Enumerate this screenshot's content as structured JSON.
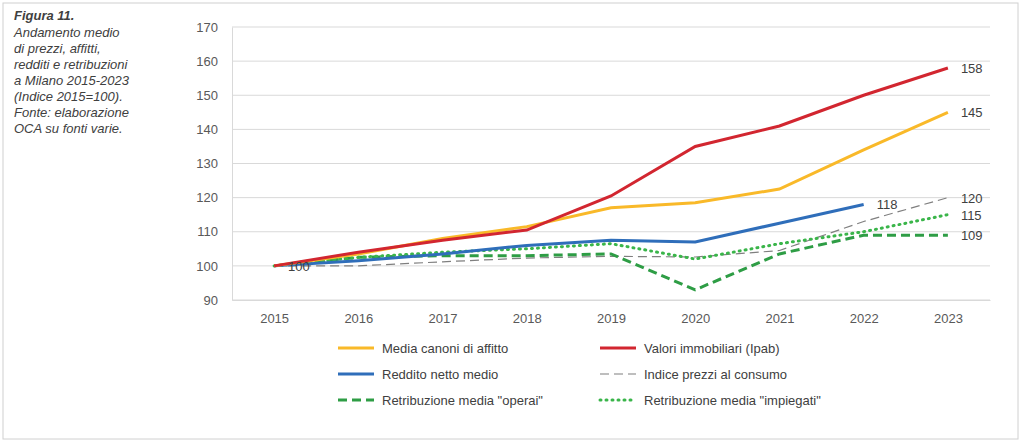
{
  "chart_data": {
    "type": "line",
    "title": "Figura 11.",
    "subtitle": [
      "Andamento medio",
      "di prezzi, affitti,",
      "redditi e retribuzioni",
      "a Milano 2015-2023",
      "(Indice 2015=100).",
      "Fonte: elaborazione",
      "OCA su fonti varie."
    ],
    "categories": [
      "2015",
      "2016",
      "2017",
      "2018",
      "2019",
      "2020",
      "2021",
      "2022",
      "2023"
    ],
    "ylim": [
      90,
      170
    ],
    "yticks": [
      90,
      100,
      110,
      120,
      130,
      140,
      150,
      160,
      170
    ],
    "grid": true,
    "legend": "bottom",
    "series": [
      {
        "name": "Media canoni di affitto",
        "color": "#f9b929",
        "line_style": "solid",
        "values": [
          100,
          103.5,
          108,
          111.5,
          117,
          118.5,
          122.5,
          134,
          145
        ]
      },
      {
        "name": "Valori immobiliari (Ipab)",
        "color": "#d22630",
        "line_style": "solid",
        "values": [
          100,
          104,
          107.5,
          110.5,
          120.5,
          135,
          141,
          150,
          158
        ]
      },
      {
        "name": "Reddito netto medio",
        "color": "#2f6eba",
        "line_style": "solid",
        "values": [
          100,
          101.5,
          103.5,
          106,
          107.5,
          107,
          112.5,
          118,
          null
        ]
      },
      {
        "name": "Indice prezzi al consumo",
        "color": "#7f7f7f",
        "line_style": "dashed",
        "values": [
          100,
          100,
          101.2,
          102.3,
          102.8,
          102.6,
          104.5,
          113,
          120
        ]
      },
      {
        "name": "Retribuzione media \"operai\"",
        "color": "#2e9d45",
        "line_style": "dashed",
        "values": [
          100,
          102.5,
          103,
          103,
          103.5,
          93,
          103.5,
          109,
          109
        ]
      },
      {
        "name": "Retribuzione media \"impiegati\"",
        "color": "#3ab54a",
        "line_style": "dotted",
        "values": [
          100,
          102.5,
          104,
          105,
          106.5,
          102,
          106.5,
          110,
          115
        ]
      }
    ],
    "annotations": [
      {
        "text": "100",
        "x": "2015",
        "y": 100
      },
      {
        "text": "158",
        "x": "2023",
        "y": 158
      },
      {
        "text": "145",
        "x": "2023",
        "y": 145
      },
      {
        "text": "118",
        "x": "2022",
        "y": 118
      },
      {
        "text": "120",
        "x": "2023",
        "y": 120
      },
      {
        "text": "115",
        "x": "2023",
        "y": 115
      },
      {
        "text": "109",
        "x": "2023",
        "y": 109
      }
    ]
  }
}
